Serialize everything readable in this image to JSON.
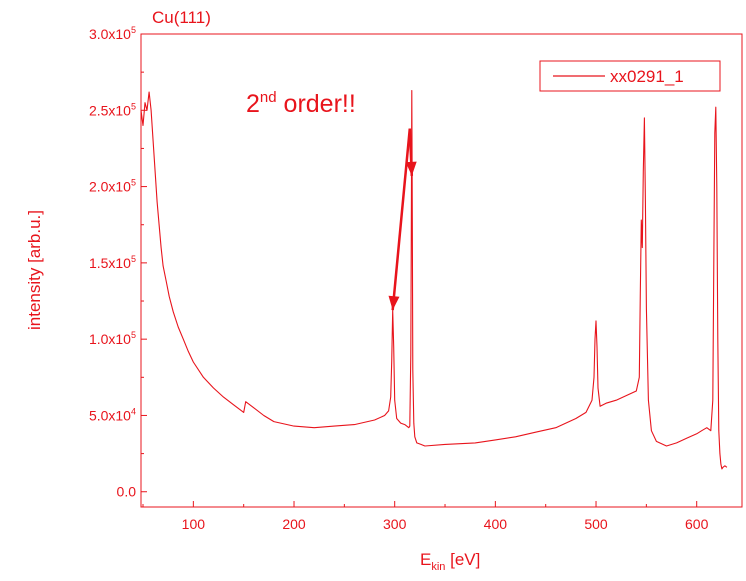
{
  "colors": {
    "accent": "#e8141c",
    "frame": "#e8141c",
    "series": "#e8141c"
  },
  "chart_data": {
    "type": "line",
    "title": "Cu(111)",
    "xlabel": {
      "main": "E",
      "sub": "kin",
      "unit": " [eV]"
    },
    "ylabel": "intensity [arb.u.]",
    "xlim": [
      48,
      645
    ],
    "ylim": [
      -10000,
      300000
    ],
    "x_ticks": [
      100,
      200,
      300,
      400,
      500,
      600
    ],
    "x_tick_labels": [
      "100",
      "200",
      "300",
      "400",
      "500",
      "600"
    ],
    "y_ticks": [
      0,
      50000,
      100000,
      150000,
      200000,
      250000,
      300000
    ],
    "y_tick_labels": [
      {
        "mant": "0.0",
        "exp": ""
      },
      {
        "mant": "5.0x10",
        "exp": "4"
      },
      {
        "mant": "1.0x10",
        "exp": "5"
      },
      {
        "mant": "1.5x10",
        "exp": "5"
      },
      {
        "mant": "2.0x10",
        "exp": "5"
      },
      {
        "mant": "2.5x10",
        "exp": "5"
      },
      {
        "mant": "3.0x10",
        "exp": "5"
      }
    ],
    "legend": {
      "position": "top-right",
      "entries": [
        "xx0291_1"
      ]
    },
    "annotation": {
      "text_main": "2",
      "text_sup": "nd",
      "text_rest": " order!!",
      "arrow_from": [
        315,
        238000
      ],
      "arrow_targets": [
        [
          298,
          119000
        ],
        [
          317,
          207000
        ]
      ]
    },
    "series": [
      {
        "name": "xx0291_1",
        "x": [
          48,
          50,
          52,
          54,
          56,
          58,
          60,
          62,
          64,
          66,
          68,
          70,
          73,
          76,
          80,
          85,
          90,
          95,
          100,
          110,
          120,
          130,
          140,
          150,
          152,
          160,
          170,
          180,
          200,
          220,
          240,
          260,
          280,
          290,
          294,
          296,
          297,
          298,
          299,
          300,
          302,
          306,
          310,
          314,
          315,
          316,
          316.5,
          317,
          317.5,
          318,
          319,
          320,
          322,
          326,
          330,
          350,
          380,
          400,
          420,
          440,
          460,
          480,
          490,
          496,
          498,
          499,
          500,
          501,
          502,
          504,
          510,
          520,
          530,
          540,
          543,
          544,
          545,
          546,
          547,
          548,
          549,
          550,
          552,
          555,
          560,
          570,
          580,
          590,
          600,
          605,
          610,
          614,
          616,
          617,
          618,
          619,
          620,
          621,
          622,
          623,
          624,
          625,
          626,
          628,
          630
        ],
        "y": [
          250000,
          240000,
          255000,
          250000,
          262000,
          250000,
          230000,
          210000,
          190000,
          175000,
          160000,
          148000,
          138000,
          128000,
          118000,
          108000,
          100000,
          92000,
          85000,
          75000,
          68000,
          62000,
          57000,
          52000,
          59000,
          55000,
          50000,
          46000,
          43000,
          42000,
          43000,
          44000,
          47000,
          50000,
          53000,
          62000,
          85000,
          119000,
          95000,
          60000,
          48000,
          45000,
          44000,
          42000,
          43000,
          90000,
          170000,
          263000,
          180000,
          80000,
          45000,
          36000,
          32000,
          31000,
          30000,
          31000,
          32000,
          34000,
          36000,
          39000,
          42000,
          48000,
          52000,
          60000,
          75000,
          100000,
          112000,
          95000,
          68000,
          56000,
          58000,
          60000,
          63000,
          66000,
          75000,
          130000,
          178000,
          160000,
          210000,
          245000,
          190000,
          120000,
          60000,
          40000,
          33000,
          30000,
          32000,
          35000,
          38000,
          40000,
          42000,
          40000,
          60000,
          150000,
          235000,
          252000,
          200000,
          100000,
          40000,
          25000,
          18000,
          15000,
          16000,
          17000,
          16000
        ]
      }
    ]
  }
}
